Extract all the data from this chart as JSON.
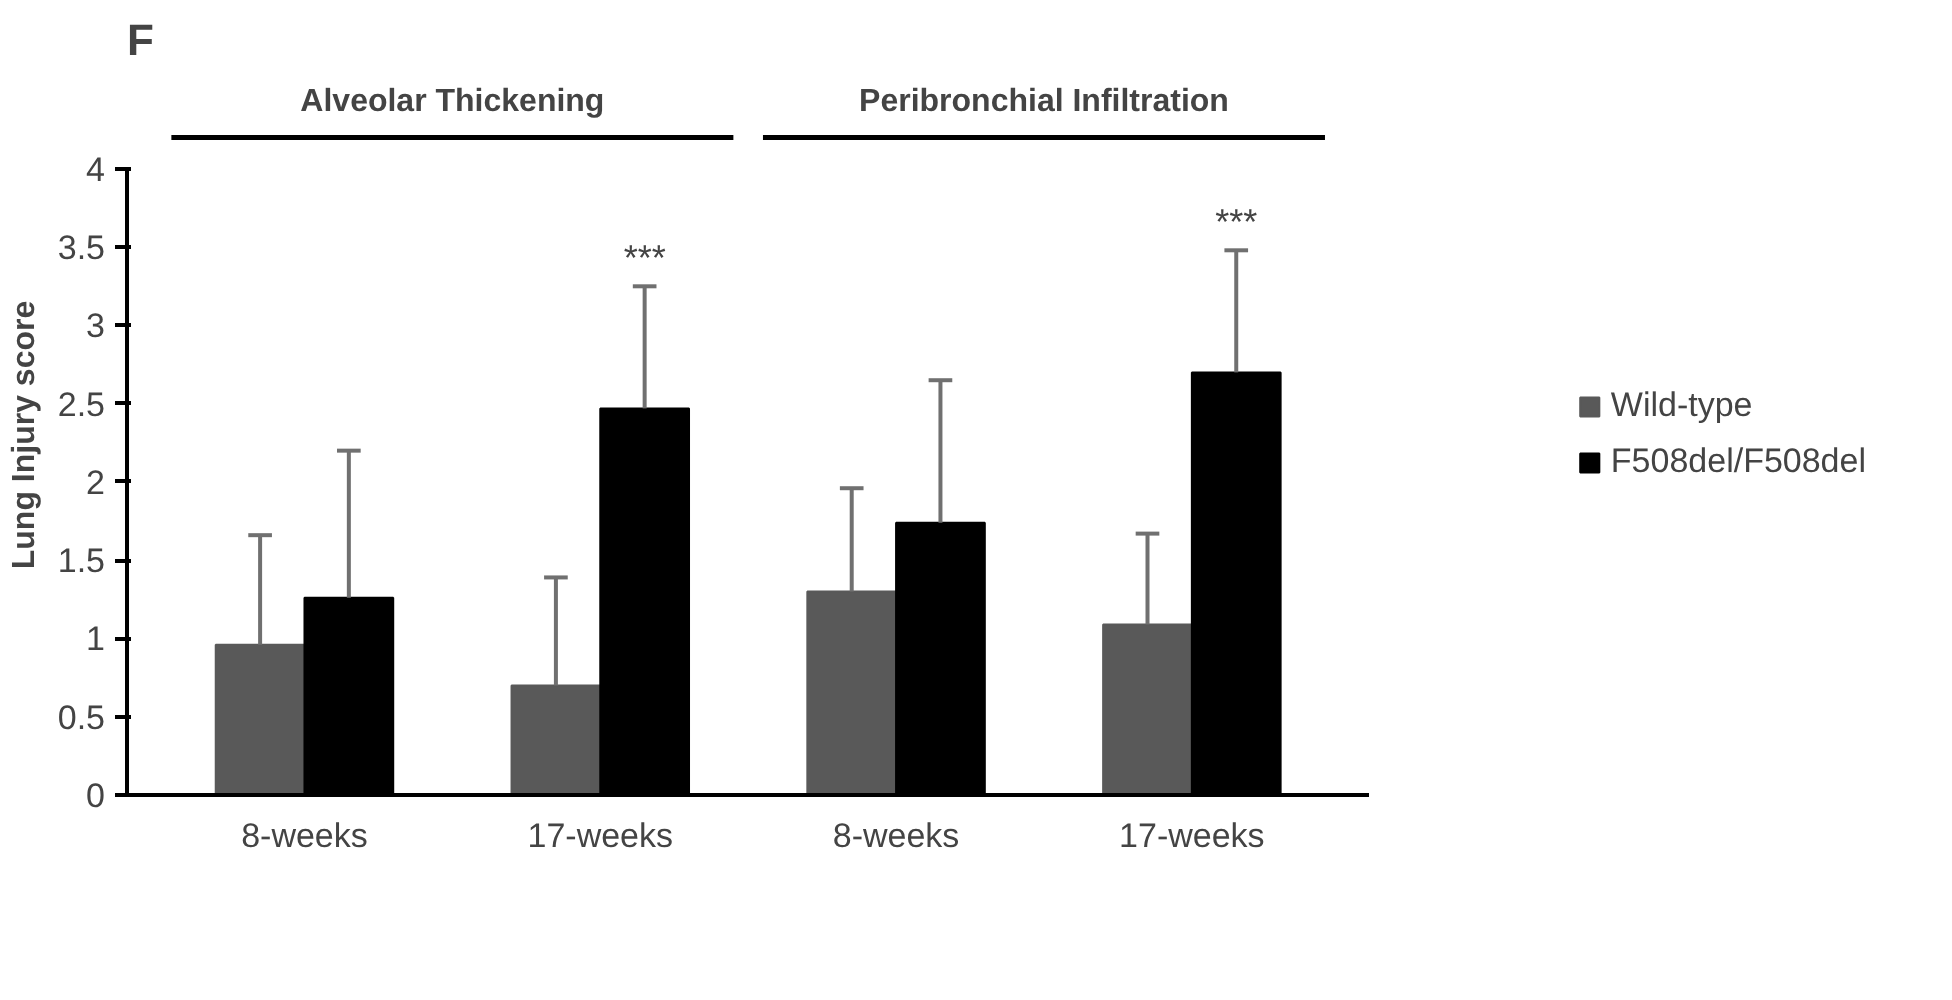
{
  "chart_data": {
    "type": "bar",
    "title": "F",
    "ylabel": "Lung Injury score",
    "categories": [
      "8-weeks",
      "17-weeks",
      "8-weeks",
      "17-weeks"
    ],
    "series": [
      {
        "name": "Wild-type",
        "color": "#595959",
        "values": [
          0.96,
          0.7,
          1.3,
          1.09
        ],
        "errors": [
          [
            0.96,
            1.66
          ],
          [
            0.7,
            1.39
          ],
          [
            1.3,
            1.96
          ],
          [
            1.09,
            1.67
          ]
        ]
      },
      {
        "name": "F508del/F508del",
        "color": "#000000",
        "values": [
          1.26,
          2.47,
          1.74,
          2.7
        ],
        "errors": [
          [
            1.26,
            2.2
          ],
          [
            2.47,
            3.25
          ],
          [
            1.74,
            2.65
          ],
          [
            2.7,
            3.48
          ]
        ]
      }
    ],
    "annotations": [
      "Alveolar Thickening",
      "Peribronchial Infiltration",
      "***",
      "***"
    ],
    "ylim": [
      0,
      4
    ],
    "yticks": [
      0,
      0.5,
      1,
      1.5,
      2,
      2.5,
      3,
      3.5,
      4
    ],
    "grid": false,
    "legend": "right"
  }
}
